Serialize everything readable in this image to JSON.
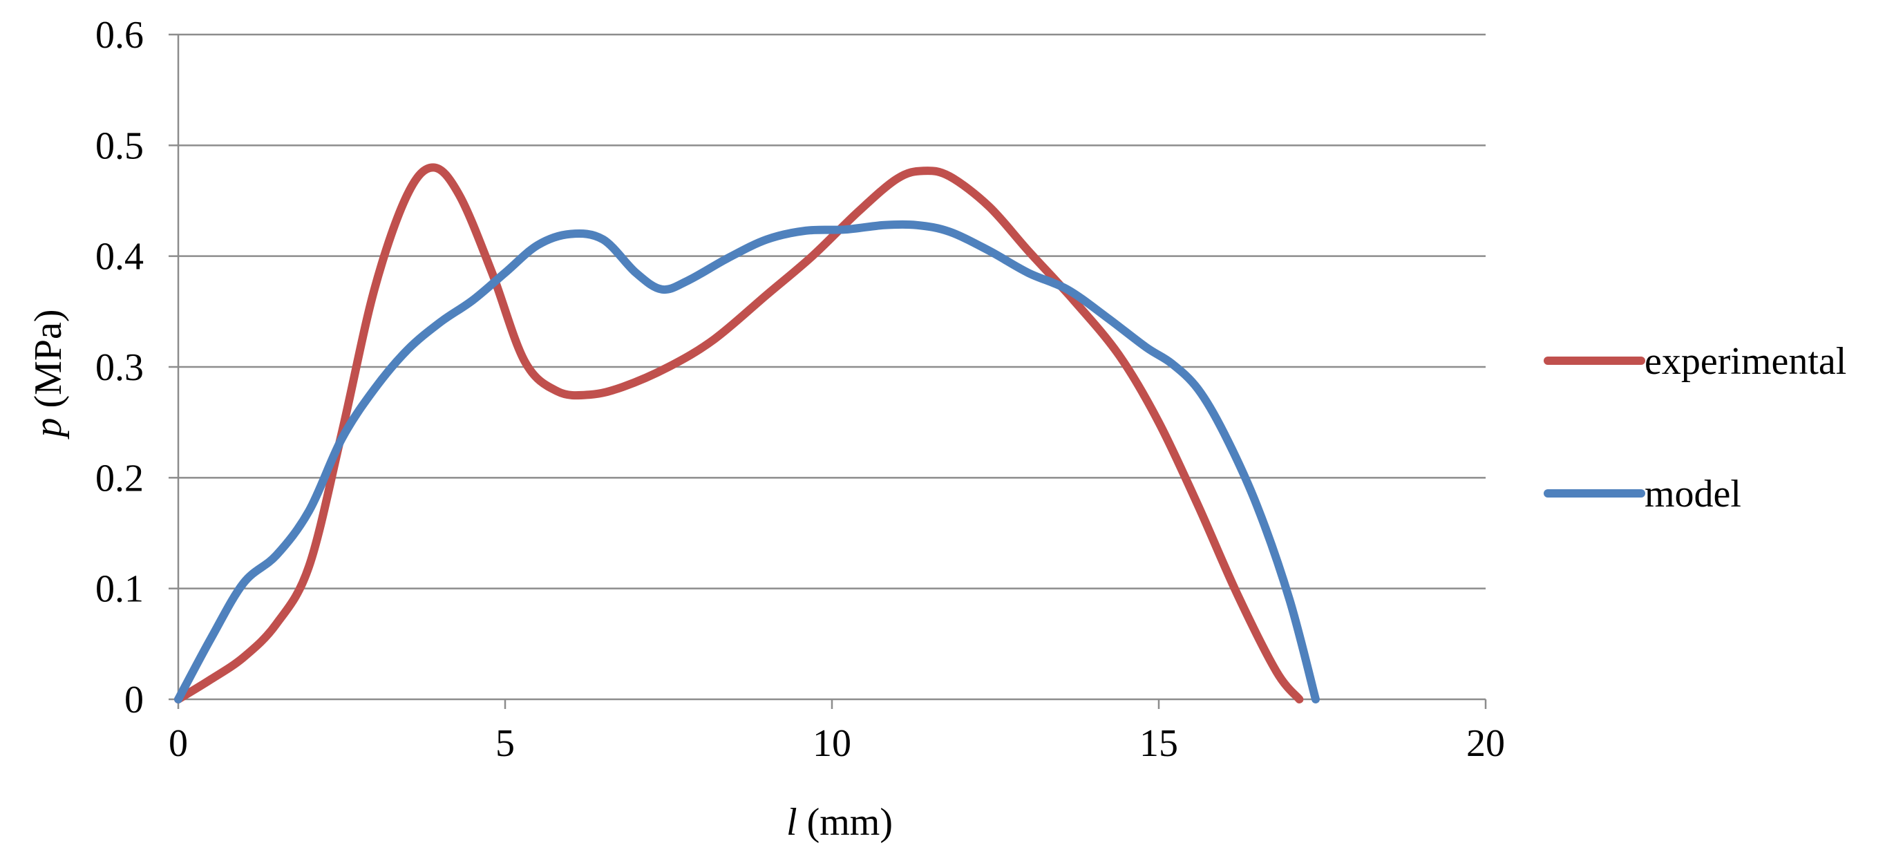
{
  "chart_data": {
    "type": "line",
    "xlabel_var": "l",
    "xlabel_unit": " (mm)",
    "ylabel_var": "p",
    "ylabel_unit": " (MPa)",
    "xlim": [
      0,
      20
    ],
    "ylim": [
      0,
      0.6
    ],
    "x_ticks": [
      "0",
      "5",
      "10",
      "15",
      "20"
    ],
    "y_ticks": [
      "0",
      "0.1",
      "0.2",
      "0.3",
      "0.4",
      "0.5",
      "0.6"
    ],
    "x_tick_values": [
      0,
      5,
      10,
      15,
      20
    ],
    "y_tick_values": [
      0,
      0.1,
      0.2,
      0.3,
      0.4,
      0.5,
      0.6
    ],
    "grid": "horizontal",
    "legend_position": "right",
    "series": [
      {
        "name": "experimental",
        "color": "#C0504D",
        "x": [
          0,
          0.5,
          1.0,
          1.5,
          2.0,
          2.5,
          3.0,
          3.5,
          3.9,
          4.3,
          4.8,
          5.3,
          5.8,
          6.3,
          6.8,
          7.5,
          8.2,
          9.0,
          9.7,
          10.4,
          11.0,
          11.4,
          11.8,
          12.4,
          13.0,
          13.7,
          14.4,
          15.0,
          15.6,
          16.2,
          16.8,
          17.15
        ],
        "y": [
          0,
          0.018,
          0.038,
          0.068,
          0.12,
          0.24,
          0.37,
          0.455,
          0.48,
          0.455,
          0.385,
          0.305,
          0.278,
          0.275,
          0.282,
          0.3,
          0.325,
          0.365,
          0.4,
          0.44,
          0.47,
          0.477,
          0.472,
          0.445,
          0.405,
          0.36,
          0.31,
          0.25,
          0.175,
          0.095,
          0.025,
          0
        ]
      },
      {
        "name": "model",
        "color": "#4F81BD",
        "x": [
          0,
          0.5,
          1.0,
          1.5,
          2.0,
          2.5,
          3.0,
          3.5,
          4.0,
          4.5,
          5.0,
          5.5,
          6.0,
          6.5,
          7.0,
          7.4,
          7.8,
          8.4,
          9.0,
          9.6,
          10.2,
          10.8,
          11.3,
          11.8,
          12.4,
          13.0,
          13.6,
          14.2,
          14.8,
          15.2,
          15.6,
          16.0,
          16.5,
          17.0,
          17.4
        ],
        "y": [
          0,
          0.055,
          0.105,
          0.13,
          0.17,
          0.235,
          0.28,
          0.315,
          0.34,
          0.36,
          0.385,
          0.41,
          0.42,
          0.415,
          0.385,
          0.37,
          0.378,
          0.398,
          0.415,
          0.423,
          0.424,
          0.428,
          0.428,
          0.422,
          0.405,
          0.385,
          0.37,
          0.345,
          0.318,
          0.303,
          0.28,
          0.24,
          0.175,
          0.09,
          0
        ]
      }
    ]
  }
}
